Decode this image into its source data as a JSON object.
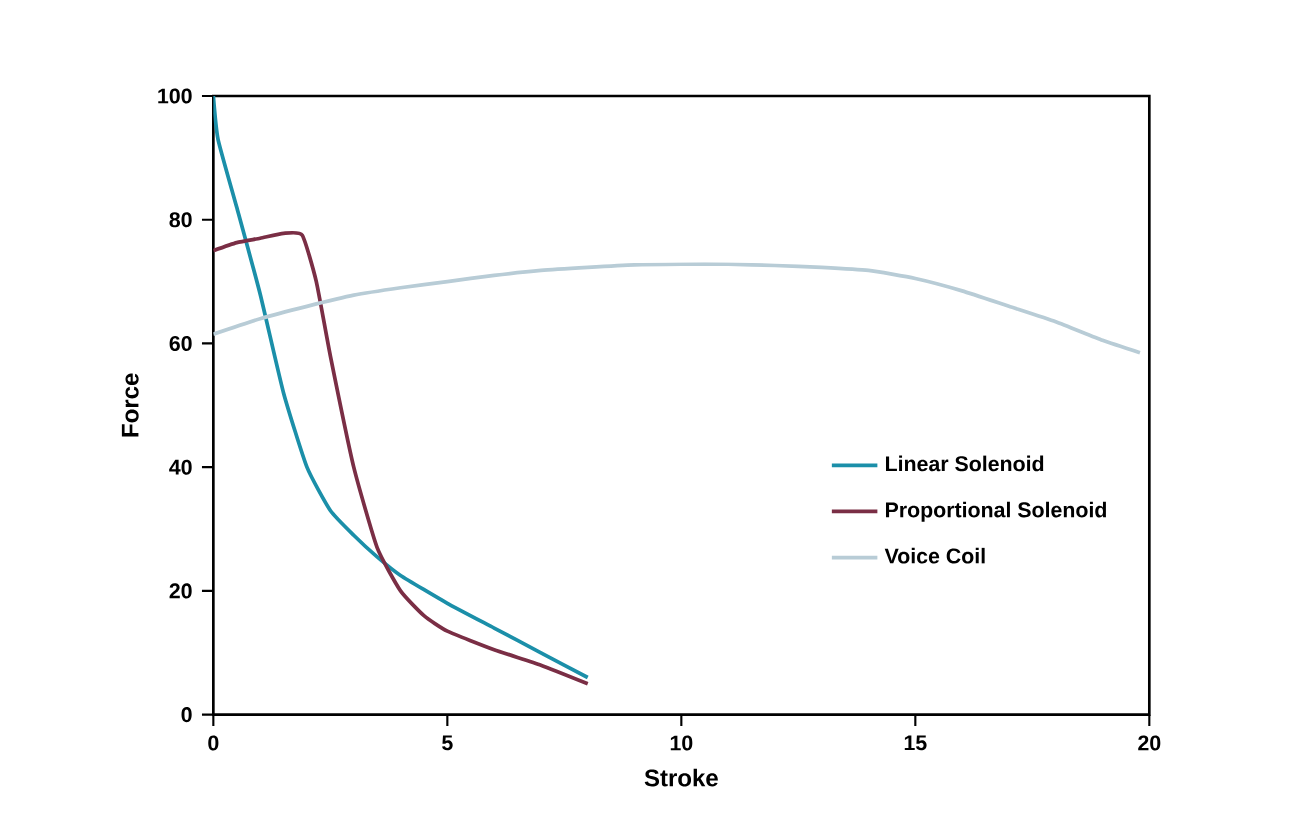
{
  "chart_data": {
    "type": "line",
    "xlabel": "Stroke",
    "ylabel": "Force",
    "xlim": [
      0,
      20
    ],
    "ylim": [
      0,
      100
    ],
    "xticks": [
      0,
      5,
      10,
      15,
      20
    ],
    "yticks": [
      0,
      20,
      40,
      60,
      80,
      100
    ],
    "grid": false,
    "legend": "right",
    "marker": "none",
    "line_style": "solid",
    "series": [
      {
        "name": "Linear Solenoid",
        "color": "#1b8fa9",
        "x": [
          0,
          0.1,
          0.5,
          1,
          1.5,
          2,
          2.5,
          3,
          3.5,
          4,
          5,
          6,
          7,
          8
        ],
        "values": [
          100,
          93,
          82,
          68,
          52,
          40,
          33,
          29,
          25.5,
          22.5,
          18,
          14,
          10,
          6
        ]
      },
      {
        "name": "Proportional Solenoid",
        "color": "#7a2e45",
        "x": [
          0,
          0.5,
          1,
          1.5,
          1.9,
          2.2,
          2.5,
          3,
          3.5,
          4,
          4.5,
          5,
          6,
          7,
          8
        ],
        "values": [
          75,
          76.3,
          77,
          77.8,
          77.5,
          70,
          58,
          40,
          27,
          20,
          16,
          13.5,
          10.5,
          8,
          5
        ]
      },
      {
        "name": "Voice Coil",
        "color": "#b8ccd6",
        "x": [
          0,
          1,
          2,
          3,
          4,
          5,
          6,
          7,
          8,
          9,
          10,
          11,
          12,
          13,
          14,
          15,
          16,
          17,
          18,
          19,
          19.8
        ],
        "values": [
          61.5,
          64,
          66,
          67.8,
          69,
          70,
          71,
          71.8,
          72.3,
          72.7,
          72.8,
          72.8,
          72.6,
          72.3,
          71.8,
          70.5,
          68.5,
          66,
          63.5,
          60.5,
          58.5
        ]
      }
    ]
  }
}
